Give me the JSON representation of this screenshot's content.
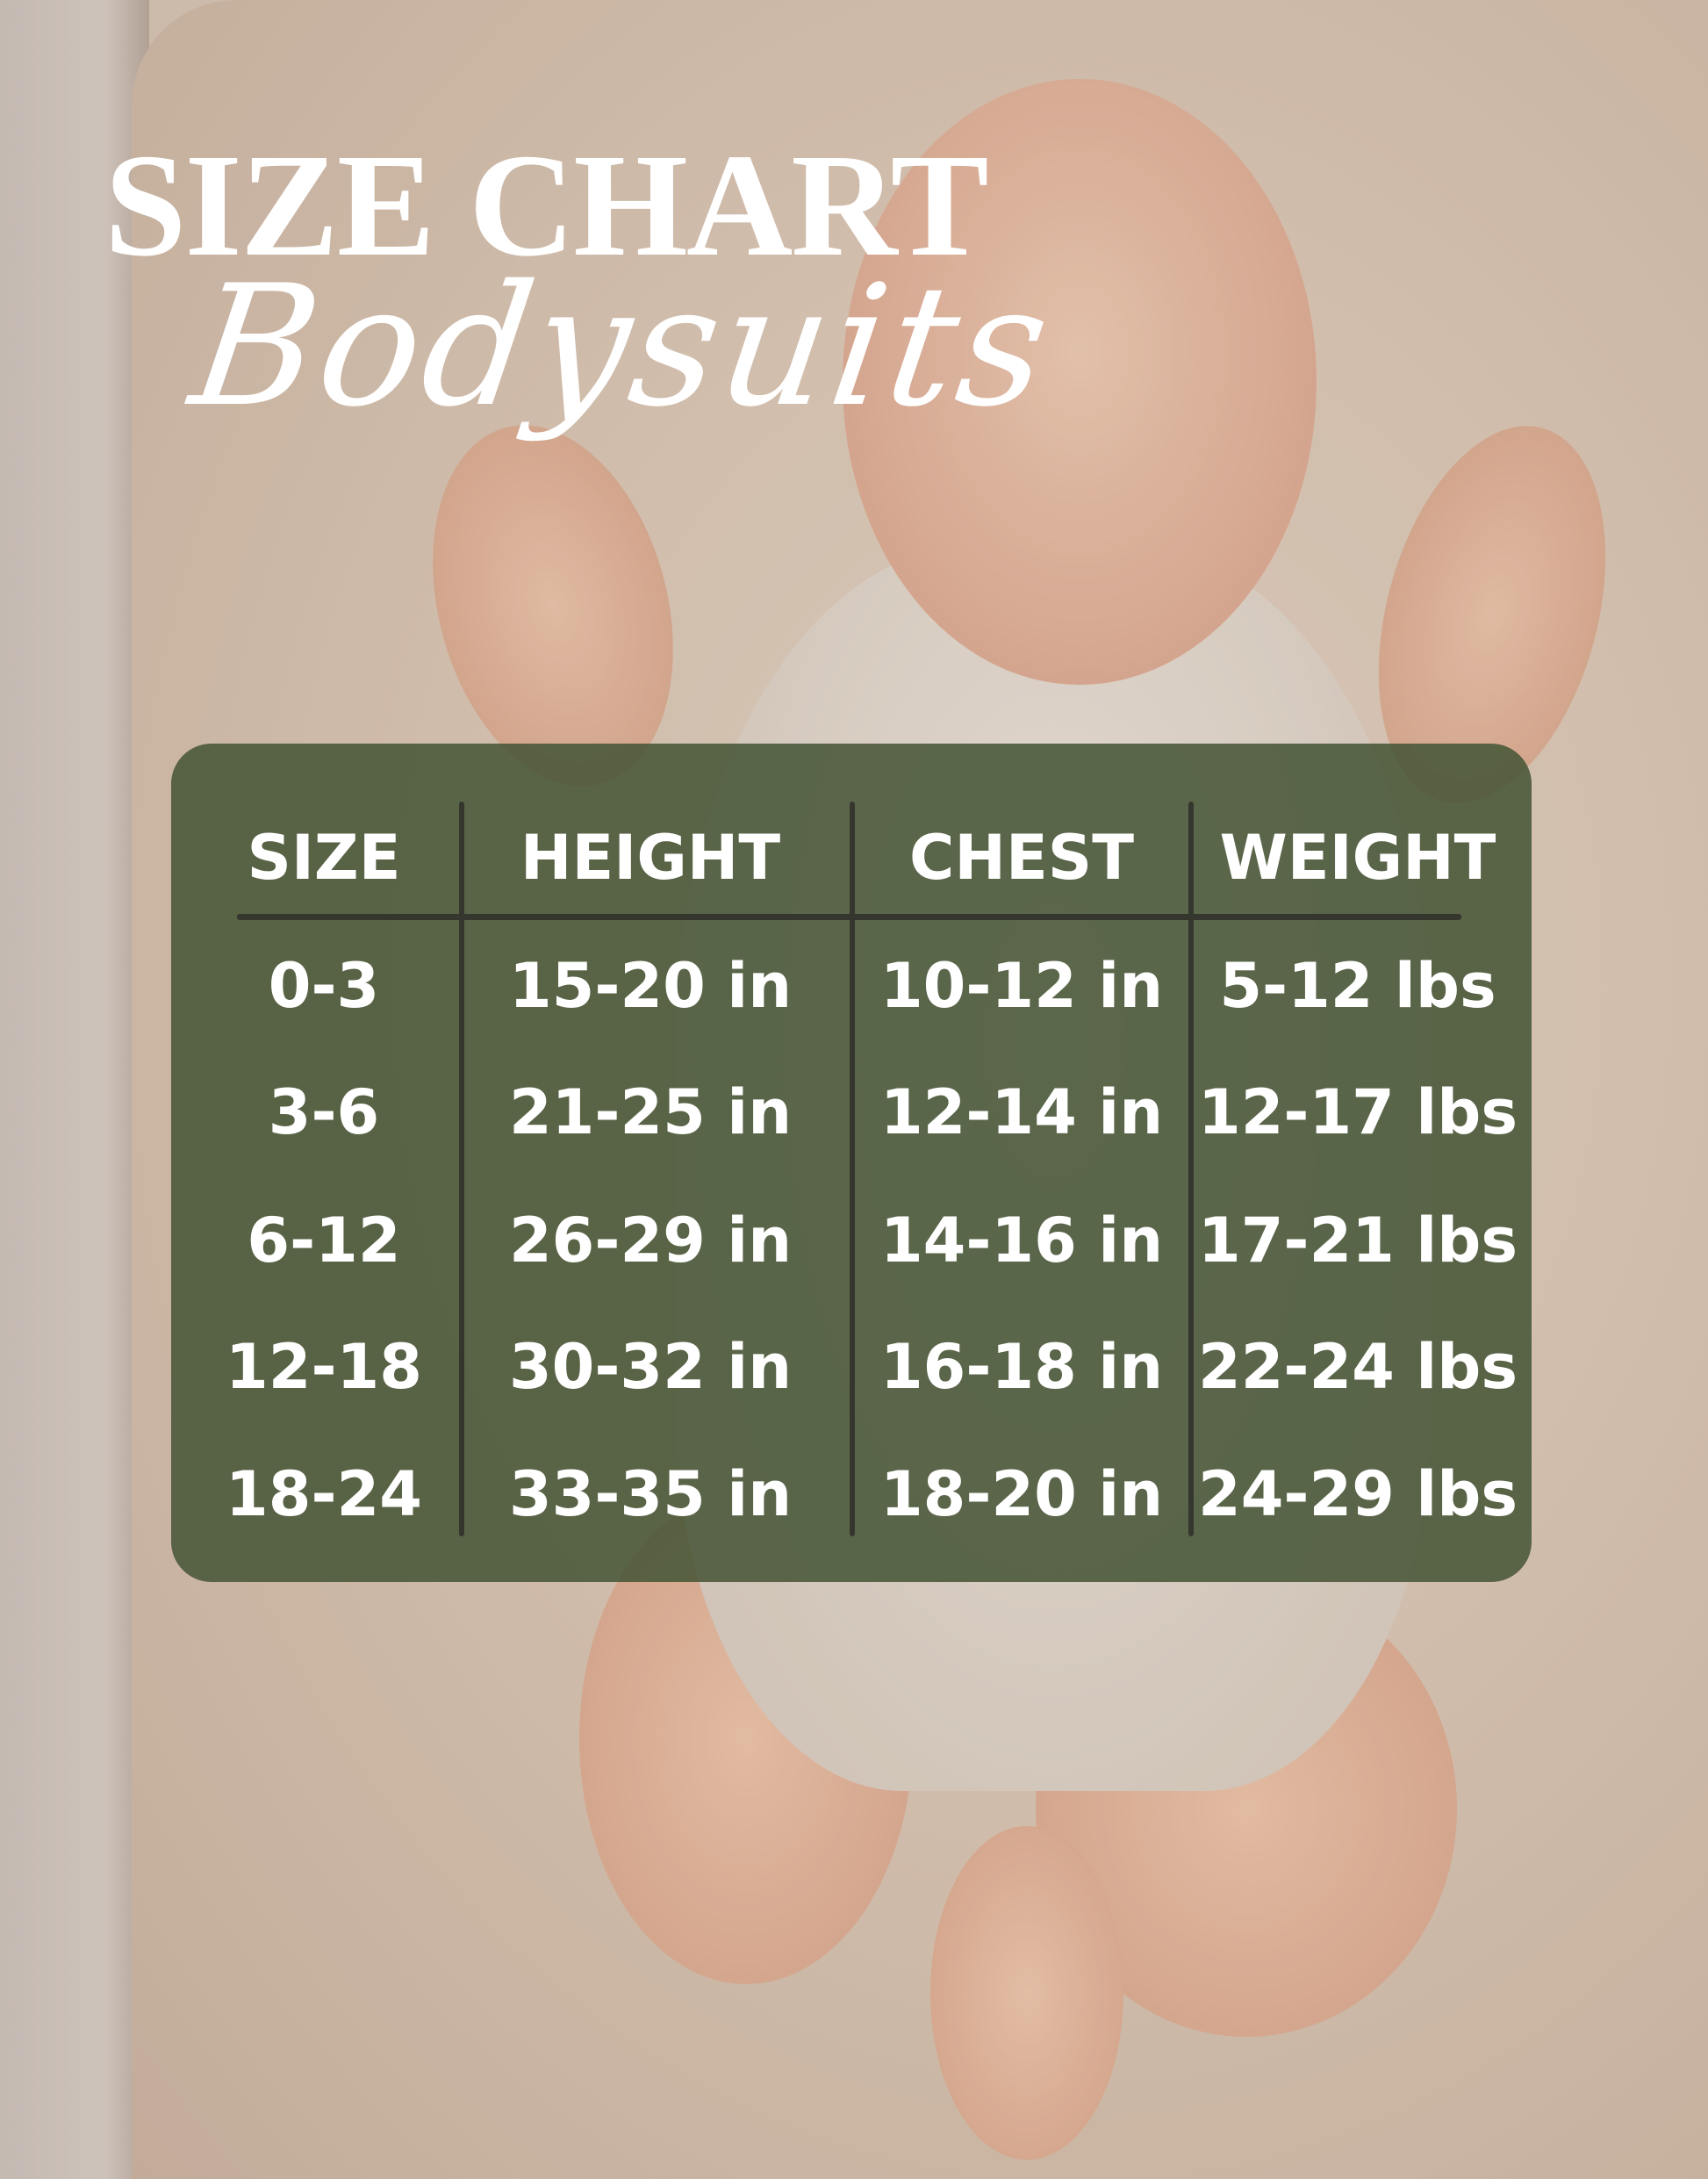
{
  "title": "SIZE CHART",
  "subtitle": "Bodysuits",
  "colors": {
    "panel": "#485638",
    "divider": "#35372f",
    "text": "#ffffff"
  },
  "table": {
    "headers": [
      "SIZE",
      "HEIGHT",
      "CHEST",
      "WEIGHT"
    ],
    "rows": [
      [
        "0-3",
        "15-20 in",
        "10-12 in",
        "5-12 lbs"
      ],
      [
        "3-6",
        "21-25 in",
        "12-14 in",
        "12-17 lbs"
      ],
      [
        "6-12",
        "26-29 in",
        "14-16 in",
        "17-21 lbs"
      ],
      [
        "12-18",
        "30-32 in",
        "16-18 in",
        "22-24 lbs"
      ],
      [
        "18-24",
        "33-35 in",
        "18-20 in",
        "24-29 lbs"
      ]
    ]
  }
}
